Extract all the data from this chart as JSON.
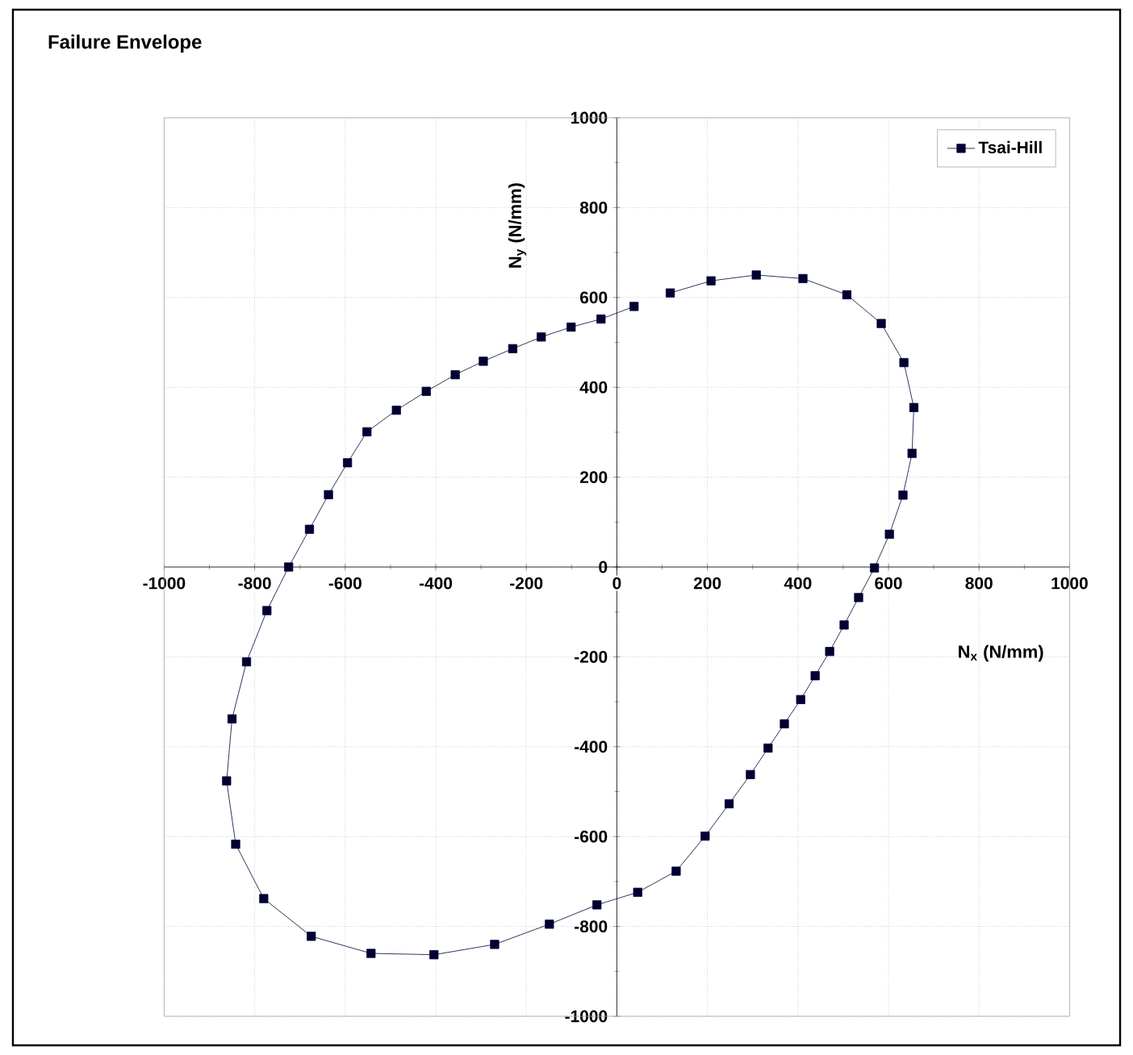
{
  "chart_data": {
    "type": "line",
    "title": "Failure Envelope",
    "xlabel": "N$_{x}$ (N/mm)",
    "ylabel": "N$_{y}$ (N/mm)",
    "xlim": [
      -1000,
      1000
    ],
    "ylim": [
      -1000,
      1000
    ],
    "xticks": [
      -1000,
      -800,
      -600,
      -400,
      -200,
      0,
      200,
      400,
      600,
      800,
      1000
    ],
    "yticks": [
      -1000,
      -800,
      -600,
      -400,
      -200,
      0,
      200,
      400,
      600,
      800,
      1000
    ],
    "grid": true,
    "legend": "top right",
    "marker": "square",
    "line_style": "solid",
    "series": [
      {
        "name": "Tsai-Hill",
        "color": "#000033",
        "x": [
          38,
          -35,
          -101,
          -167,
          -230,
          -295,
          -357,
          -421,
          -487,
          -552,
          -595,
          -637,
          -679,
          -725,
          -773,
          -818,
          -850,
          -862,
          -842,
          -780,
          -675,
          -543,
          -404,
          -270,
          -149,
          -44,
          46,
          131,
          195,
          248,
          295,
          334,
          370,
          406,
          438,
          470,
          502,
          534,
          569,
          602,
          632,
          652,
          656,
          634,
          584,
          508,
          411,
          308,
          208,
          118
        ],
        "values": [
          580,
          552,
          534,
          512,
          486,
          458,
          428,
          391,
          349,
          301,
          232,
          161,
          84,
          0,
          -97,
          -211,
          -338,
          -476,
          -617,
          -738,
          -822,
          -860,
          -863,
          -840,
          -795,
          -752,
          -724,
          -677,
          -599,
          -527,
          -462,
          -403,
          -349,
          -295,
          -242,
          -188,
          -129,
          -68,
          -2,
          73,
          160,
          253,
          355,
          455,
          542,
          606,
          642,
          650,
          637,
          610
        ]
      }
    ]
  }
}
